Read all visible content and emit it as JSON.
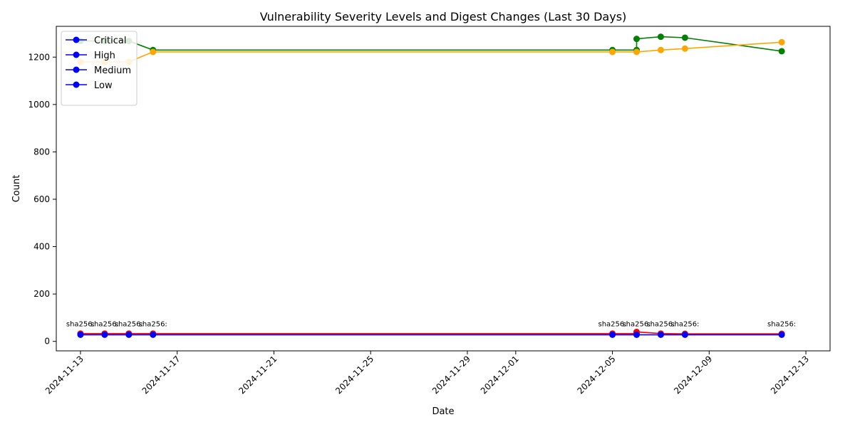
{
  "chart_data": {
    "type": "line",
    "title": "Vulnerability Severity Levels and Digest Changes (Last 30 Days)",
    "xlabel": "Date",
    "ylabel": "Count",
    "x_axis_type": "date",
    "xlim": [
      "2024-11-12",
      "2024-12-14"
    ],
    "ylim": [
      -40,
      1330
    ],
    "x_ticks": [
      "2024-11-13",
      "2024-11-17",
      "2024-11-21",
      "2024-11-25",
      "2024-11-29",
      "2024-12-01",
      "2024-12-05",
      "2024-12-09",
      "2024-12-13"
    ],
    "y_ticks": [
      0,
      200,
      400,
      600,
      800,
      1000,
      1200
    ],
    "legend_position": "top-left",
    "grid": false,
    "legend": [
      {
        "name": "Critical",
        "color": "#0000ff"
      },
      {
        "name": "High",
        "color": "#0000ff"
      },
      {
        "name": "Medium",
        "color": "#0000ff"
      },
      {
        "name": "Low",
        "color": "#0000ff"
      }
    ],
    "series": [
      {
        "color": "#008000",
        "points": [
          {
            "x": "2024-11-13",
            "y": 1268
          },
          {
            "x": "2024-11-14",
            "y": 1268
          },
          {
            "x": "2024-11-15",
            "y": 1268
          },
          {
            "x": "2024-11-16",
            "y": 1230
          },
          {
            "x": "2024-12-05",
            "y": 1230
          },
          {
            "x": "2024-12-06",
            "y": 1230
          },
          {
            "x": "2024-12-06",
            "y": 1277
          },
          {
            "x": "2024-12-07",
            "y": 1286
          },
          {
            "x": "2024-12-08",
            "y": 1282
          },
          {
            "x": "2024-12-12",
            "y": 1225
          }
        ]
      },
      {
        "color": "#ffa500",
        "points": [
          {
            "x": "2024-11-13",
            "y": 1180
          },
          {
            "x": "2024-11-14",
            "y": 1180
          },
          {
            "x": "2024-11-15",
            "y": 1180
          },
          {
            "x": "2024-11-16",
            "y": 1222
          },
          {
            "x": "2024-12-05",
            "y": 1222
          },
          {
            "x": "2024-12-06",
            "y": 1222
          },
          {
            "x": "2024-12-07",
            "y": 1230
          },
          {
            "x": "2024-12-08",
            "y": 1236
          },
          {
            "x": "2024-12-12",
            "y": 1263
          }
        ]
      },
      {
        "color": "#ff0000",
        "points": [
          {
            "x": "2024-11-13",
            "y": 33
          },
          {
            "x": "2024-11-14",
            "y": 33
          },
          {
            "x": "2024-11-15",
            "y": 33
          },
          {
            "x": "2024-11-16",
            "y": 33
          },
          {
            "x": "2024-12-05",
            "y": 33
          },
          {
            "x": "2024-12-06",
            "y": 33
          },
          {
            "x": "2024-12-06",
            "y": 40
          },
          {
            "x": "2024-12-07",
            "y": 33
          },
          {
            "x": "2024-12-08",
            "y": 32
          },
          {
            "x": "2024-12-12",
            "y": 32
          }
        ]
      },
      {
        "color": "#0000ff",
        "points": [
          {
            "x": "2024-11-13",
            "y": 28
          },
          {
            "x": "2024-11-14",
            "y": 28
          },
          {
            "x": "2024-11-15",
            "y": 28
          },
          {
            "x": "2024-11-16",
            "y": 28
          },
          {
            "x": "2024-12-05",
            "y": 28
          },
          {
            "x": "2024-12-06",
            "y": 28
          },
          {
            "x": "2024-12-07",
            "y": 28
          },
          {
            "x": "2024-12-08",
            "y": 28
          },
          {
            "x": "2024-12-12",
            "y": 28
          }
        ]
      }
    ],
    "annotations": [
      {
        "x": "2024-11-13",
        "y": 75,
        "text": "sha256:"
      },
      {
        "x": "2024-11-14",
        "y": 75,
        "text": "sha256:"
      },
      {
        "x": "2024-11-15",
        "y": 75,
        "text": "sha256:"
      },
      {
        "x": "2024-11-16",
        "y": 75,
        "text": "sha256:"
      },
      {
        "x": "2024-12-05",
        "y": 75,
        "text": "sha256:"
      },
      {
        "x": "2024-12-06",
        "y": 75,
        "text": "sha256:"
      },
      {
        "x": "2024-12-07",
        "y": 75,
        "text": "sha256:"
      },
      {
        "x": "2024-12-08",
        "y": 75,
        "text": "sha256:"
      },
      {
        "x": "2024-12-12",
        "y": 75,
        "text": "sha256:"
      }
    ]
  }
}
